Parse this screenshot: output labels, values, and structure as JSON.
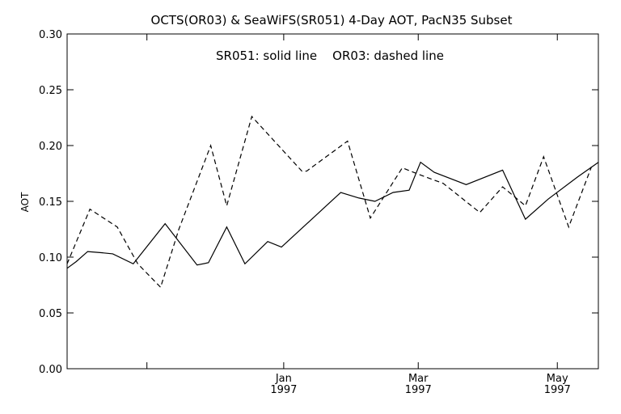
{
  "chart_data": {
    "type": "line",
    "title": "OCTS(OR03) & SeaWiFS(SR051) 4-Day AOT, PacN35 Subset",
    "annotation": "SR051: solid line    OR03: dashed line",
    "xlabel": "",
    "ylabel": "AOT",
    "ylim": [
      0.0,
      0.3
    ],
    "yticks": [
      "0.00",
      "0.05",
      "0.10",
      "0.15",
      "0.20",
      "0.25",
      "0.30"
    ],
    "x_unit": "days relative to 1997-01-01",
    "xlim": [
      -95,
      138
    ],
    "xticks": [
      {
        "value": -60,
        "label": ""
      },
      {
        "value": 0,
        "label": "Jan",
        "sublabel": "1997"
      },
      {
        "value": 59,
        "label": "Mar",
        "sublabel": "1997"
      },
      {
        "value": 120,
        "label": "May",
        "sublabel": "1997"
      }
    ],
    "grid": false,
    "series": [
      {
        "name": "SR051",
        "style": "solid",
        "color": "#000000",
        "x": [
          -95,
          -91,
          -86,
          -80,
          -75,
          -66,
          -52,
          -38,
          -33,
          -25,
          -17,
          -7,
          -1,
          25,
          33,
          40,
          48,
          55,
          60,
          66,
          80,
          96,
          106,
          116,
          129,
          138
        ],
        "y": [
          0.09,
          0.096,
          0.105,
          0.104,
          0.103,
          0.094,
          0.13,
          0.093,
          0.095,
          0.127,
          0.094,
          0.114,
          0.109,
          0.158,
          0.153,
          0.15,
          0.158,
          0.16,
          0.185,
          0.176,
          0.165,
          0.178,
          0.134,
          0.152,
          0.172,
          0.185
        ]
      },
      {
        "name": "OR03",
        "style": "dashed",
        "color": "#000000",
        "x": [
          -95,
          -85,
          -73,
          -64,
          -54,
          -46,
          -32,
          -25,
          -14,
          8,
          10,
          28,
          38,
          52,
          62,
          70,
          86,
          96,
          106,
          114,
          125,
          135
        ],
        "y": [
          0.094,
          0.143,
          0.127,
          0.094,
          0.073,
          0.125,
          0.2,
          0.146,
          0.226,
          0.177,
          0.177,
          0.204,
          0.135,
          0.18,
          0.172,
          0.166,
          0.14,
          0.163,
          0.146,
          0.19,
          0.127,
          0.181
        ]
      }
    ]
  }
}
